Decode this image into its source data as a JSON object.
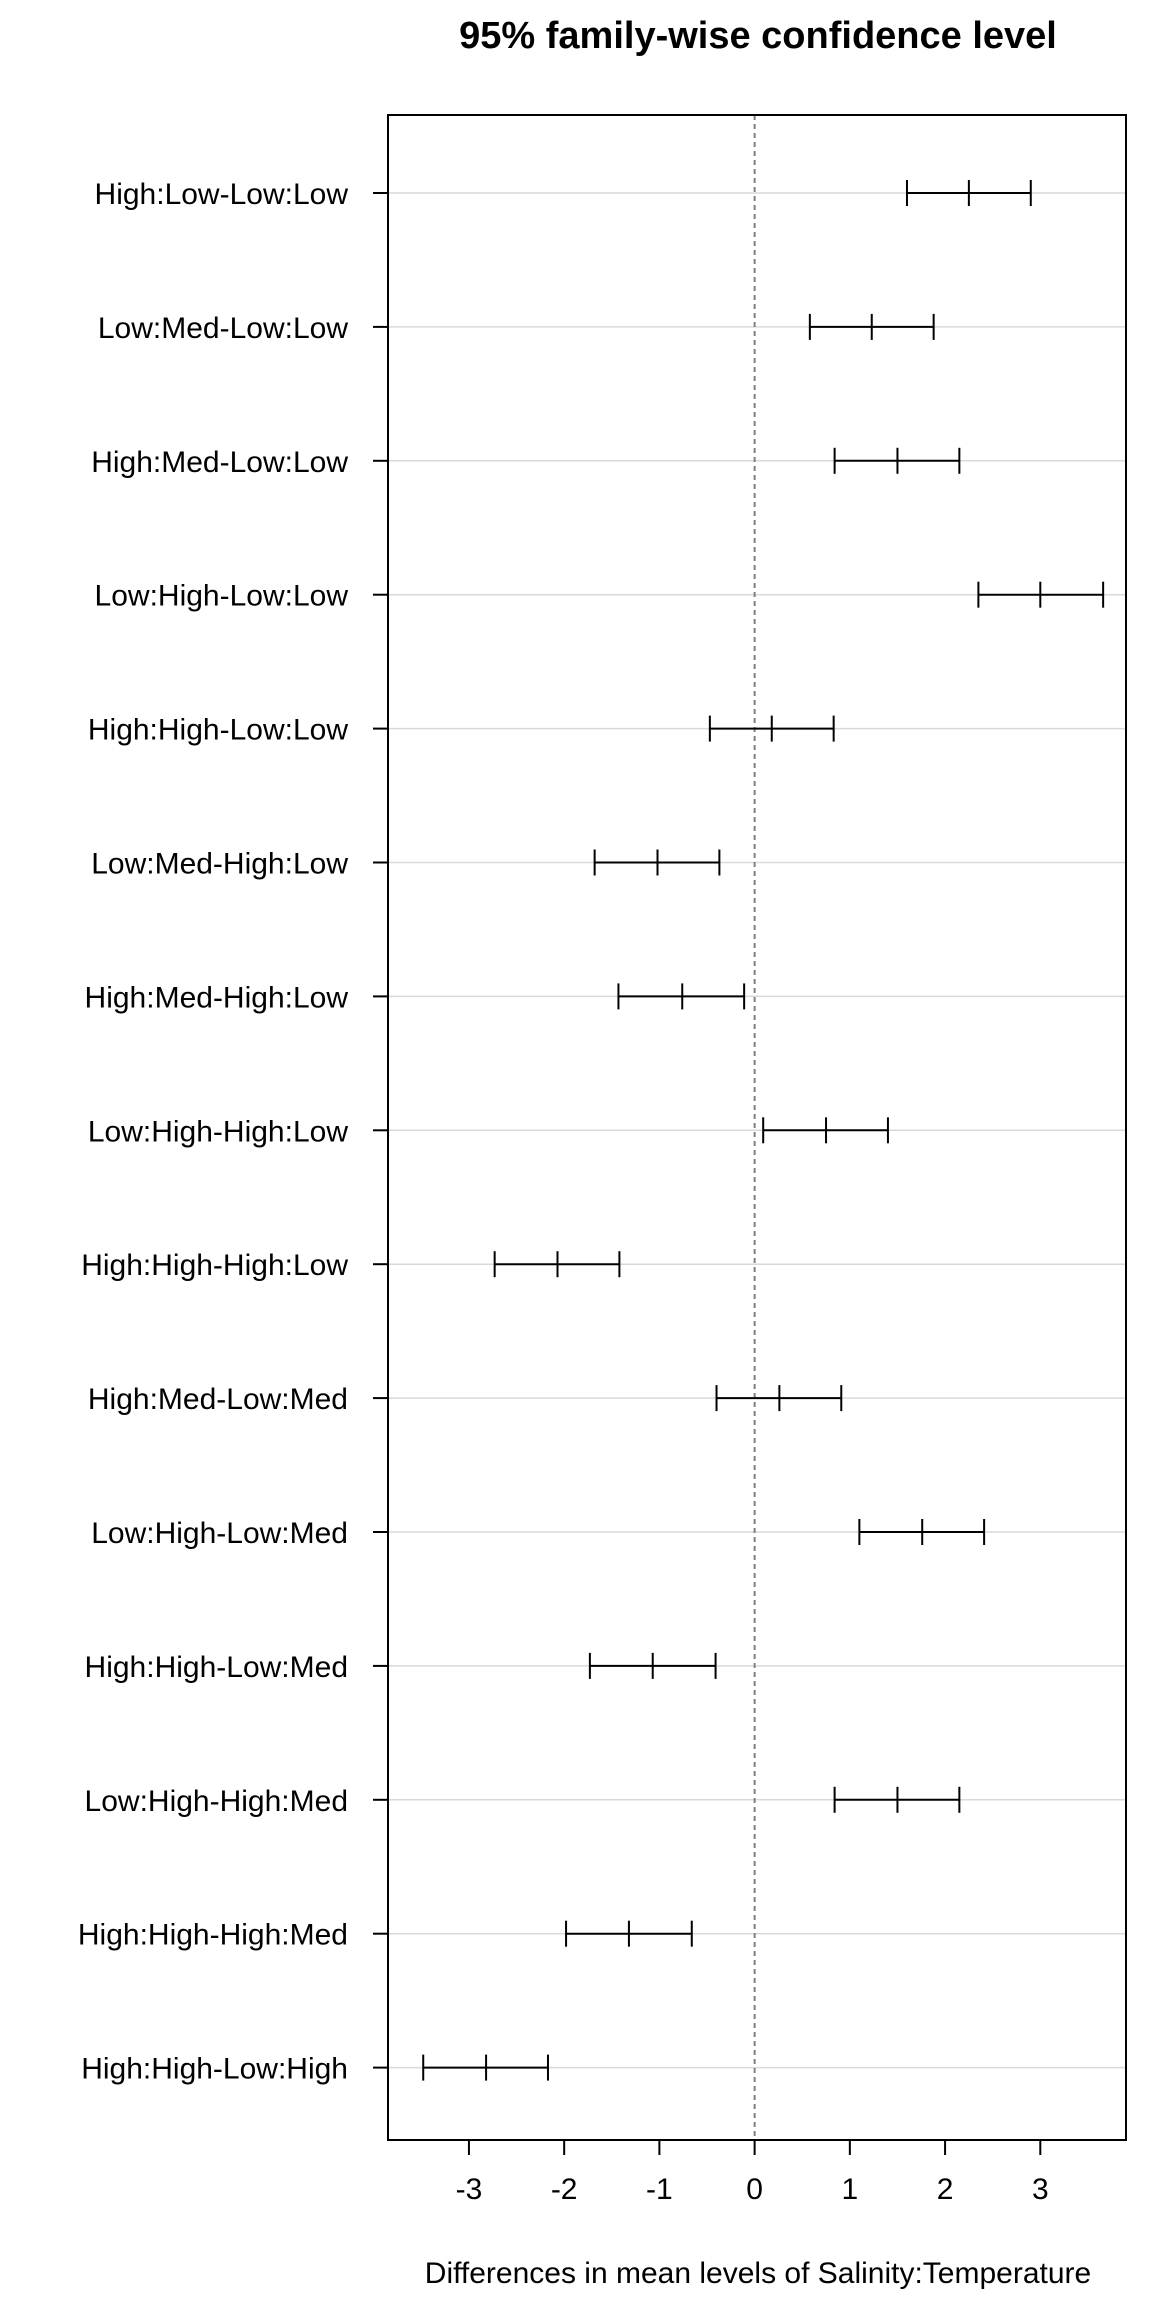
{
  "chart_data": {
    "type": "errorbar",
    "title": "95% family-wise confidence level",
    "xlabel": "Differences in mean levels of Salinity:Temperature",
    "ylabel": "",
    "xlim": [
      -3.85,
      3.9
    ],
    "x_ticks": [
      -3,
      -2,
      -1,
      0,
      1,
      2,
      3
    ],
    "x_tick_labels": [
      "-3",
      "-2",
      "-1",
      "0",
      "1",
      "2",
      "3"
    ],
    "reference_line": 0,
    "grid": "horizontal",
    "comparisons": [
      {
        "label": "High:Low-Low:Low",
        "lwr": 1.6,
        "estimate": 2.25,
        "upr": 2.9
      },
      {
        "label": "Low:Med-Low:Low",
        "lwr": 0.58,
        "estimate": 1.23,
        "upr": 1.88
      },
      {
        "label": "High:Med-Low:Low",
        "lwr": 0.84,
        "estimate": 1.5,
        "upr": 2.15
      },
      {
        "label": "Low:High-Low:Low",
        "lwr": 2.35,
        "estimate": 3.0,
        "upr": 3.66
      },
      {
        "label": "High:High-Low:Low",
        "lwr": -0.47,
        "estimate": 0.18,
        "upr": 0.83
      },
      {
        "label": "Low:Med-High:Low",
        "lwr": -1.68,
        "estimate": -1.02,
        "upr": -0.37
      },
      {
        "label": "High:Med-High:Low",
        "lwr": -1.43,
        "estimate": -0.76,
        "upr": -0.11
      },
      {
        "label": "Low:High-High:Low",
        "lwr": 0.09,
        "estimate": 0.75,
        "upr": 1.4
      },
      {
        "label": "High:High-High:Low",
        "lwr": -2.73,
        "estimate": -2.07,
        "upr": -1.42
      },
      {
        "label": "High:Med-Low:Med",
        "lwr": -0.4,
        "estimate": 0.26,
        "upr": 0.91
      },
      {
        "label": "Low:High-Low:Med",
        "lwr": 1.1,
        "estimate": 1.76,
        "upr": 2.41
      },
      {
        "label": "High:High-Low:Med",
        "lwr": -1.73,
        "estimate": -1.07,
        "upr": -0.41
      },
      {
        "label": "Low:High-High:Med",
        "lwr": 0.84,
        "estimate": 1.5,
        "upr": 2.15
      },
      {
        "label": "High:High-High:Med",
        "lwr": -1.98,
        "estimate": -1.32,
        "upr": -0.66
      },
      {
        "label": "High:High-Low:High",
        "lwr": -3.48,
        "estimate": -2.82,
        "upr": -2.17
      }
    ],
    "colors": {
      "axis": "#000000",
      "grid": "#d9d9d9",
      "reference": "#808080",
      "interval": "#000000"
    }
  }
}
